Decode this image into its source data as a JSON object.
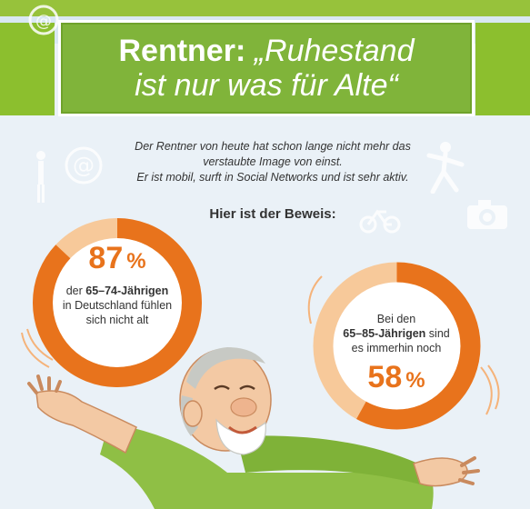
{
  "banner": {
    "title_bold": "Rentner:",
    "title_line1_rest": " „Ruhestand",
    "title_line2": "ist nur was für Alte“"
  },
  "intro": {
    "line1": "Der Rentner von heute hat schon lange nicht mehr das",
    "line2": "verstaubte Image von einst.",
    "line3": "Er ist mobil, surft in Social Networks und ist sehr aktiv."
  },
  "proof_heading": "Hier ist der Beweis:",
  "stat1": {
    "value": "87",
    "unit": "%",
    "fraction": 0.87,
    "line1_prefix": "der ",
    "line1_bold": "65–74-Jährigen",
    "line2": "in Deutschland fühlen",
    "line3": "sich nicht alt"
  },
  "stat2": {
    "value": "58",
    "unit": "%",
    "fraction": 0.58,
    "line1": "Bei den",
    "line2_bold": "65–85-Jährigen",
    "line2_rest": " sind",
    "line3": "es immerhin noch"
  },
  "colors": {
    "green": "#80b43a",
    "orange": "#e8731c",
    "peach": "#f7c99a",
    "background": "#eaf1f7"
  },
  "icons": [
    "at-sign-icon",
    "jumping-person-icon",
    "camera-icon",
    "bicycle-icon",
    "person-icon"
  ]
}
